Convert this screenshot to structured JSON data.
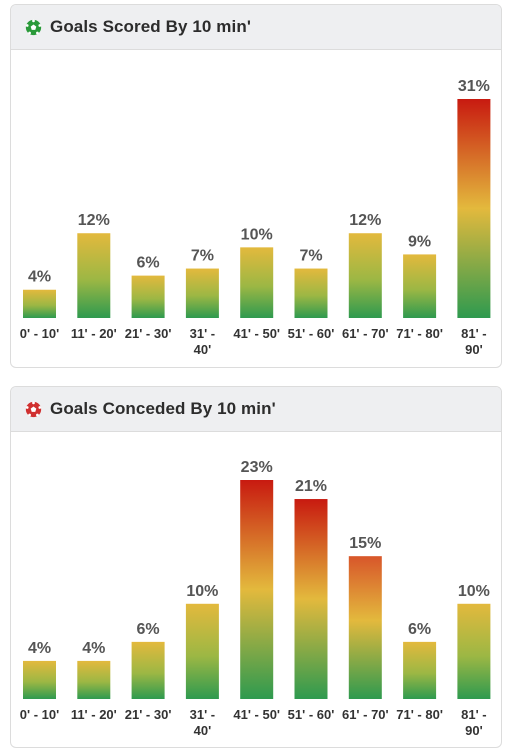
{
  "colors": {
    "bar_top_high": "#c81a10",
    "bar_mid": "#e3b93d",
    "bar_bottom": "#2e9a4f",
    "scored_icon": "#2a9a3a",
    "conceded_icon": "#d03030"
  },
  "scored": {
    "title": "Goals Scored By 10 min'",
    "icon": "soccer-ball-icon"
  },
  "conceded": {
    "title": "Goals Conceded By 10 min'",
    "icon": "soccer-ball-icon"
  },
  "chart_data": [
    {
      "type": "bar",
      "title": "Goals Scored By 10 min'",
      "categories": [
        "0' - 10'",
        "11' - 20'",
        "21' - 30'",
        "31' - 40'",
        "41' - 50'",
        "51' - 60'",
        "61' - 70'",
        "71' - 80'",
        "81' - 90'"
      ],
      "tick_lines": [
        [
          "0' - 10'"
        ],
        [
          "11' - 20'"
        ],
        [
          "21' - 30'"
        ],
        [
          "31' -",
          "40'"
        ],
        [
          "41' - 50'"
        ],
        [
          "51' - 60'"
        ],
        [
          "61' - 70'"
        ],
        [
          "71' - 80'"
        ],
        [
          "81' -",
          "90'"
        ]
      ],
      "values": [
        4,
        12,
        6,
        7,
        10,
        7,
        12,
        9,
        31
      ],
      "labels": [
        "4%",
        "12%",
        "6%",
        "7%",
        "10%",
        "7%",
        "12%",
        "9%",
        "31%"
      ],
      "unit": "%",
      "ylim": [
        0,
        31
      ],
      "grid": false
    },
    {
      "type": "bar",
      "title": "Goals Conceded By 10 min'",
      "categories": [
        "0' - 10'",
        "11' - 20'",
        "21' - 30'",
        "31' - 40'",
        "41' - 50'",
        "51' - 60'",
        "61' - 70'",
        "71' - 80'",
        "81' - 90'"
      ],
      "tick_lines": [
        [
          "0' - 10'"
        ],
        [
          "11' - 20'"
        ],
        [
          "21' - 30'"
        ],
        [
          "31' -",
          "40'"
        ],
        [
          "41' - 50'"
        ],
        [
          "51' - 60'"
        ],
        [
          "61' - 70'"
        ],
        [
          "71' - 80'"
        ],
        [
          "81' -",
          "90'"
        ]
      ],
      "values": [
        4,
        4,
        6,
        10,
        23,
        21,
        15,
        6,
        10
      ],
      "labels": [
        "4%",
        "4%",
        "6%",
        "10%",
        "23%",
        "21%",
        "15%",
        "6%",
        "10%"
      ],
      "unit": "%",
      "ylim": [
        0,
        23
      ],
      "grid": false
    }
  ]
}
